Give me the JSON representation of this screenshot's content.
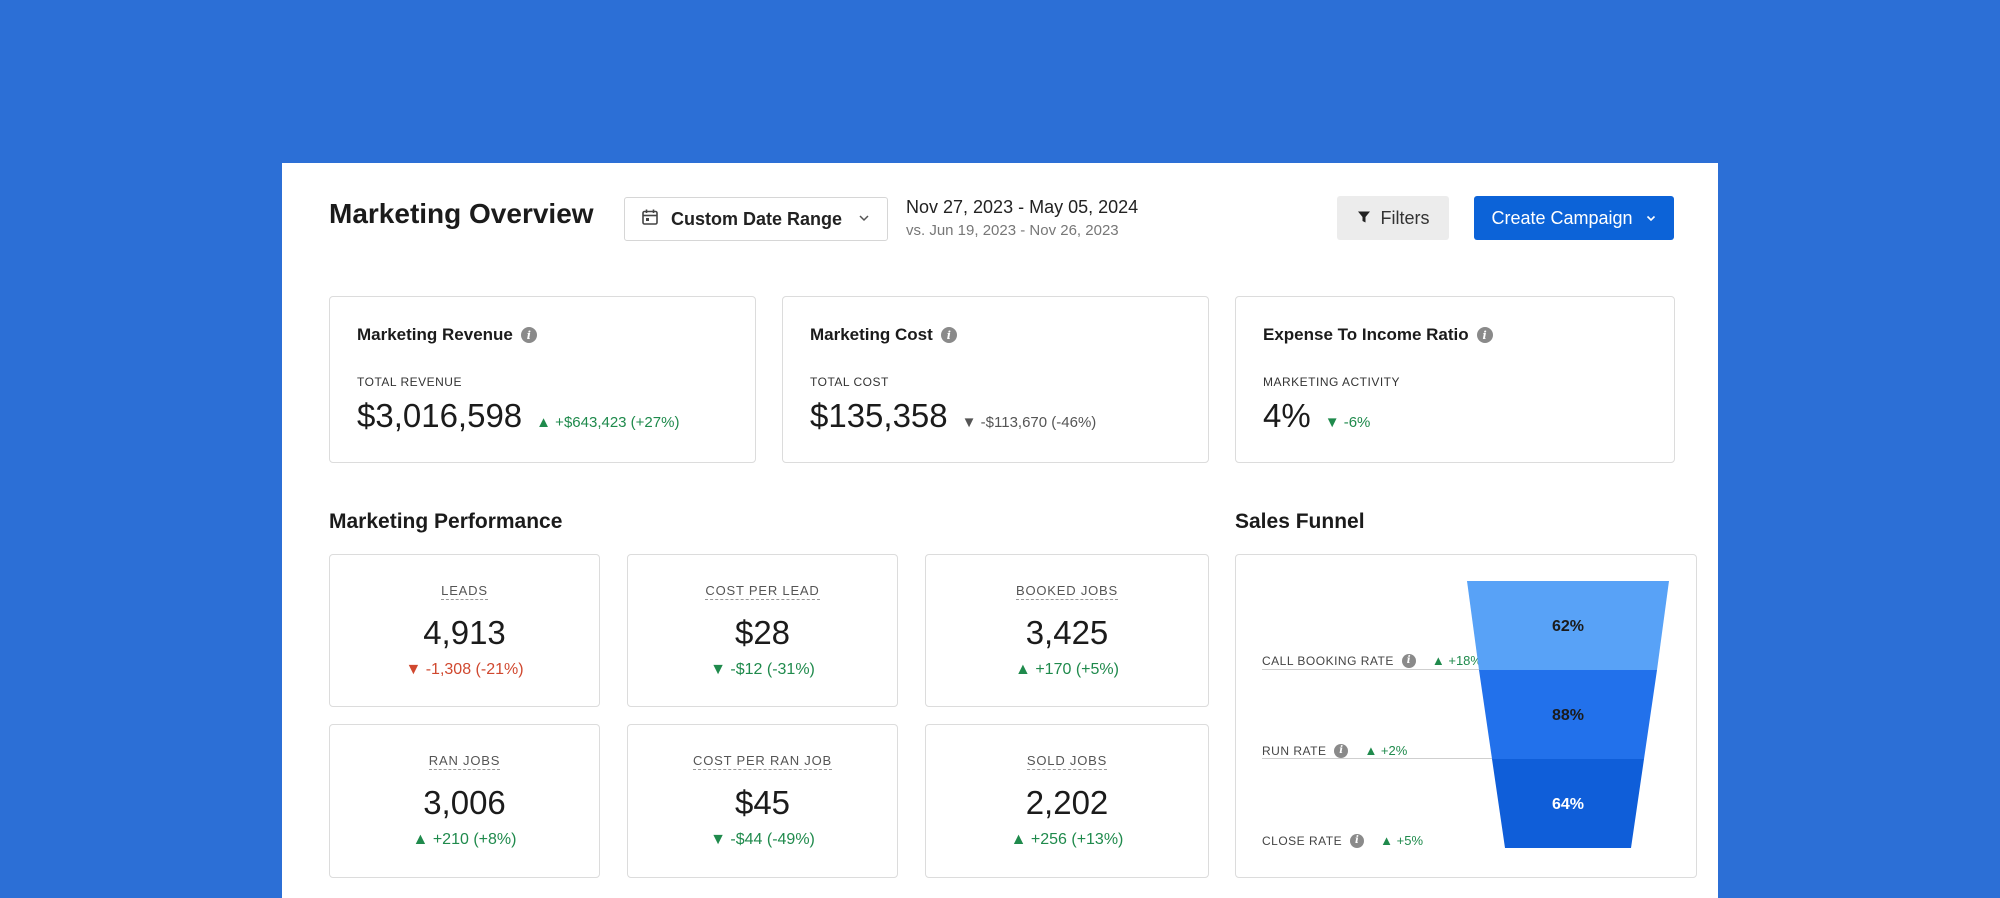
{
  "header": {
    "title": "Marketing Overview",
    "date_select_label": "Custom Date Range",
    "range_main": "Nov 27, 2023 - May 05, 2024",
    "range_compare": "vs. Jun 19, 2023 - Nov 26, 2023",
    "filters_label": "Filters",
    "create_label": "Create Campaign"
  },
  "kpis": [
    {
      "title": "Marketing Revenue",
      "sub": "TOTAL REVENUE",
      "value": "$3,016,598",
      "delta": "▲ +$643,423 (+27%)",
      "trend": "pos"
    },
    {
      "title": "Marketing Cost",
      "sub": "TOTAL COST",
      "value": "$135,358",
      "delta": "▼ -$113,670 (-46%)",
      "trend": "neu"
    },
    {
      "title": "Expense To Income Ratio",
      "sub": "MARKETING ACTIVITY",
      "value": "4%",
      "delta": "▼ -6%",
      "trend": "pos"
    }
  ],
  "performance": {
    "title": "Marketing Performance",
    "metrics": [
      {
        "label": "LEADS",
        "value": "4,913",
        "delta": "▼ -1,308 (-21%)",
        "trend": "neg"
      },
      {
        "label": "COST PER LEAD",
        "value": "$28",
        "delta": "▼ -$12 (-31%)",
        "trend": "pos"
      },
      {
        "label": "BOOKED JOBS",
        "value": "3,425",
        "delta": "▲ +170 (+5%)",
        "trend": "pos"
      },
      {
        "label": "RAN JOBS",
        "value": "3,006",
        "delta": "▲ +210 (+8%)",
        "trend": "pos"
      },
      {
        "label": "COST PER RAN JOB",
        "value": "$45",
        "delta": "▼ -$44 (-49%)",
        "trend": "pos"
      },
      {
        "label": "SOLD JOBS",
        "value": "2,202",
        "delta": "▲ +256 (+13%)",
        "trend": "pos"
      }
    ]
  },
  "funnel": {
    "title": "Sales Funnel",
    "stages": [
      {
        "label": "CALL BOOKING RATE",
        "delta": "▲ +18%",
        "pct": "62%",
        "value": 62,
        "color": "#58a2f7",
        "text_color": "#1b1b1b"
      },
      {
        "label": "RUN RATE",
        "delta": "▲ +2%",
        "pct": "88%",
        "value": 88,
        "color": "#2271eb",
        "text_color": "#1b1b1b"
      },
      {
        "label": "CLOSE RATE",
        "delta": "▲ +5%",
        "pct": "64%",
        "value": 64,
        "color": "#0f5ed9",
        "text_color": "#ffffff"
      }
    ]
  },
  "colors": {
    "background": "#2c6fd6",
    "primary": "#0c63d8",
    "positive": "#1f8a4c",
    "negative": "#d0482f"
  }
}
